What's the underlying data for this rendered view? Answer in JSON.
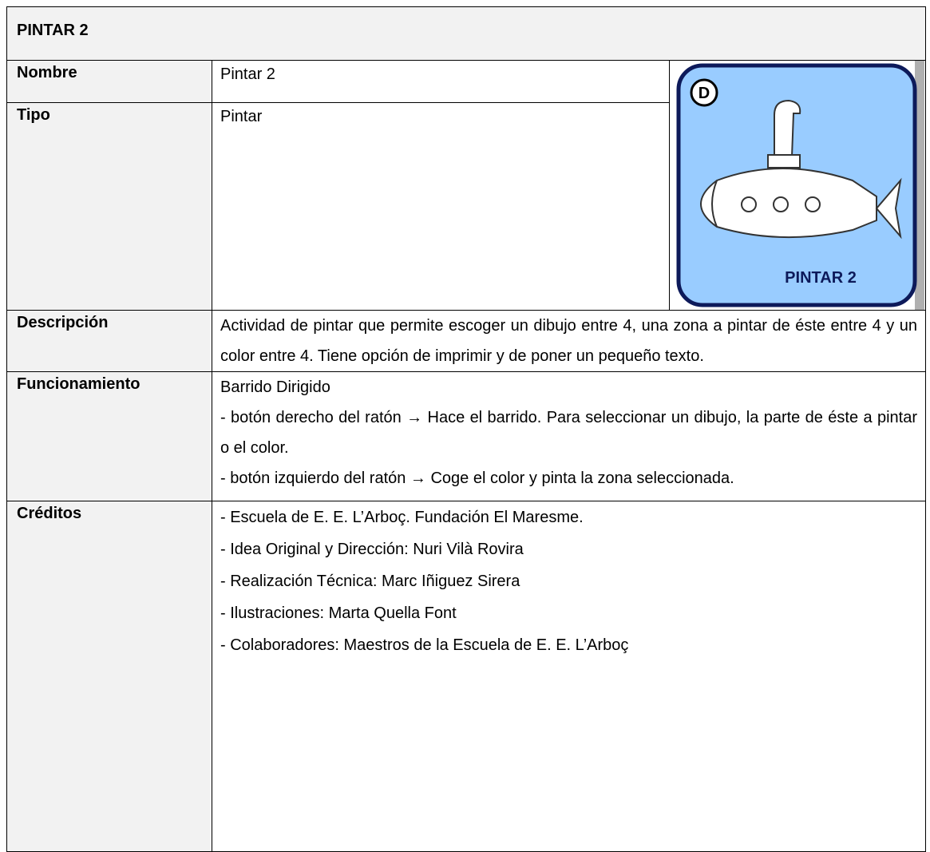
{
  "title": "PINTAR 2",
  "image": {
    "badge": "D",
    "label": "PINTAR 2"
  },
  "rows": [
    {
      "label": "Nombre",
      "lines": [
        "Pintar 2"
      ]
    },
    {
      "label": "Tipo",
      "lines": [
        "Pintar"
      ]
    },
    {
      "label": "Descripción",
      "lines": [
        "Actividad de pintar que permite escoger un dibujo entre 4, una zona a pintar de éste entre 4 y un color entre 4. Tiene opción de imprimir y de poner un pequeño texto."
      ]
    },
    {
      "label": "Funcionamiento",
      "lines": [
        "Barrido Dirigido",
        "- botón derecho del ratón → Hace el barrido. Para seleccionar un dibujo, la parte de éste a pintar o el color.",
        "- botón izquierdo del ratón → Coge el color y pinta la zona seleccionada."
      ]
    },
    {
      "label": "Créditos",
      "lines": [
        "- Escuela de E. E. L’Arboç. Fundación El Maresme.",
        "- Idea Original y Dirección: Nuri Vilà Rovira",
        "- Realización Técnica: Marc Iñiguez Sirera",
        "- Ilustraciones: Marta Quella Font",
        "- Colaboradores: Maestros de la Escuela de E. E. L’Arboç"
      ]
    }
  ]
}
